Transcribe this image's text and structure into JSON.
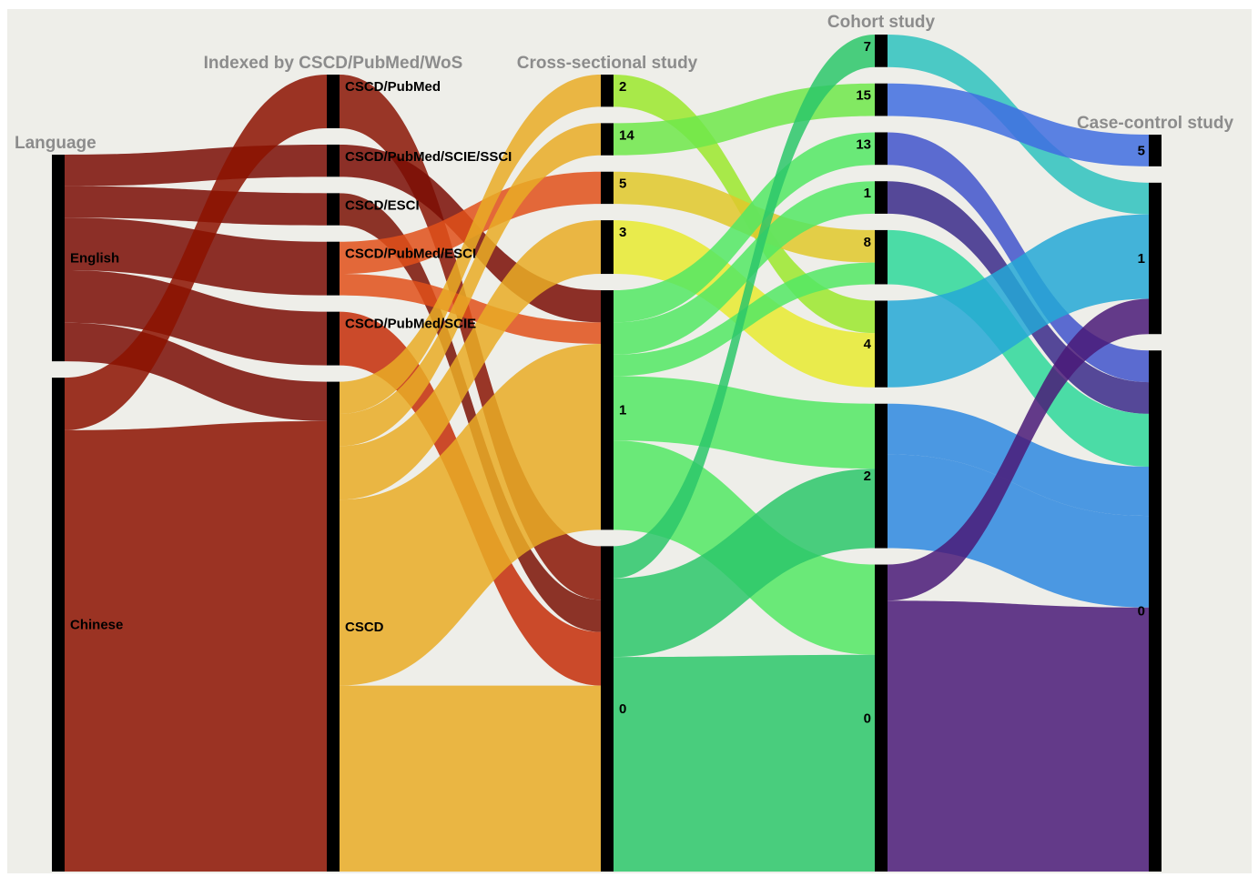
{
  "chart_data": {
    "type": "sankey",
    "subtype": "alluvial",
    "background": "#eeeee9",
    "axes": [
      {
        "title": "Language",
        "categories": [
          "English",
          "Chinese"
        ]
      },
      {
        "title": "Indexed by CSCD/PubMed/WoS",
        "categories": [
          "CSCD/PubMed",
          "CSCD/PubMed/SCIE/SSCI",
          "CSCD/ESCI",
          "CSCD/PubMed/ESCI",
          "CSCD/PubMed/SCIE",
          "CSCD"
        ]
      },
      {
        "title": "Cross-sectional study",
        "categories": [
          "2",
          "14",
          "5",
          "3",
          "1",
          "0"
        ]
      },
      {
        "title": "Cohort study",
        "categories": [
          "7",
          "15",
          "13",
          "1",
          "8",
          "4",
          "2",
          "0"
        ]
      },
      {
        "title": "Case-control study",
        "categories": [
          "5",
          "1",
          "0"
        ]
      }
    ],
    "nodes": [
      [
        {
          "label": "English",
          "value": 118
        },
        {
          "label": "Chinese",
          "value": 282
        }
      ],
      [
        {
          "label": "CSCD/PubMed",
          "value": 30
        },
        {
          "label": "CSCD/PubMed/SCIE/SSCI",
          "value": 18
        },
        {
          "label": "CSCD/ESCI",
          "value": 18
        },
        {
          "label": "CSCD/PubMed/ESCI",
          "value": 30
        },
        {
          "label": "CSCD/PubMed/SCIE",
          "value": 30
        },
        {
          "label": "CSCD",
          "value": 274
        }
      ],
      [
        {
          "label": "2",
          "value": 18
        },
        {
          "label": "14",
          "value": 18
        },
        {
          "label": "5",
          "value": 18
        },
        {
          "label": "3",
          "value": 30
        },
        {
          "label": "1",
          "value": 134
        },
        {
          "label": "0",
          "value": 182
        }
      ],
      [
        {
          "label": "7",
          "value": 18
        },
        {
          "label": "15",
          "value": 18
        },
        {
          "label": "13",
          "value": 18
        },
        {
          "label": "1",
          "value": 18
        },
        {
          "label": "8",
          "value": 30
        },
        {
          "label": "4",
          "value": 48
        },
        {
          "label": "2",
          "value": 80
        },
        {
          "label": "0",
          "value": 170
        }
      ],
      [
        {
          "label": "5",
          "value": 18
        },
        {
          "label": "1",
          "value": 86
        },
        {
          "label": "0",
          "value": 296
        }
      ]
    ],
    "flows": [
      [
        {
          "source": 0,
          "target": 1,
          "value": 18
        },
        {
          "source": 0,
          "target": 2,
          "value": 18
        },
        {
          "source": 0,
          "target": 3,
          "value": 30
        },
        {
          "source": 0,
          "target": 4,
          "value": 30
        },
        {
          "source": 0,
          "target": 5,
          "value": 22
        },
        {
          "source": 1,
          "target": 0,
          "value": 30
        },
        {
          "source": 1,
          "target": 5,
          "value": 252
        }
      ],
      [
        {
          "source": 0,
          "target": 5,
          "value": 30
        },
        {
          "source": 1,
          "target": 4,
          "value": 18
        },
        {
          "source": 2,
          "target": 5,
          "value": 18
        },
        {
          "source": 3,
          "target": 2,
          "value": 18
        },
        {
          "source": 3,
          "target": 4,
          "value": 12
        },
        {
          "source": 4,
          "target": 5,
          "value": 30
        },
        {
          "source": 5,
          "target": 0,
          "value": 18
        },
        {
          "source": 5,
          "target": 1,
          "value": 18
        },
        {
          "source": 5,
          "target": 3,
          "value": 30
        },
        {
          "source": 5,
          "target": 4,
          "value": 104
        },
        {
          "source": 5,
          "target": 5,
          "value": 104
        }
      ],
      [
        {
          "source": 0,
          "target": 5,
          "value": 18
        },
        {
          "source": 1,
          "target": 1,
          "value": 18
        },
        {
          "source": 2,
          "target": 4,
          "value": 18
        },
        {
          "source": 3,
          "target": 5,
          "value": 30
        },
        {
          "source": 4,
          "target": 2,
          "value": 18
        },
        {
          "source": 4,
          "target": 3,
          "value": 18
        },
        {
          "source": 4,
          "target": 4,
          "value": 12
        },
        {
          "source": 4,
          "target": 6,
          "value": 36
        },
        {
          "source": 4,
          "target": 7,
          "value": 50
        },
        {
          "source": 5,
          "target": 0,
          "value": 18
        },
        {
          "source": 5,
          "target": 6,
          "value": 44
        },
        {
          "source": 5,
          "target": 7,
          "value": 120
        }
      ],
      [
        {
          "source": 0,
          "target": 1,
          "value": 18
        },
        {
          "source": 1,
          "target": 0,
          "value": 18
        },
        {
          "source": 2,
          "target": 2,
          "value": 18
        },
        {
          "source": 3,
          "target": 2,
          "value": 18
        },
        {
          "source": 4,
          "target": 2,
          "value": 30
        },
        {
          "source": 5,
          "target": 1,
          "value": 48
        },
        {
          "source": 6,
          "target": 2,
          "value": 28
        },
        {
          "source": 6,
          "target": 2,
          "value": 52
        },
        {
          "source": 7,
          "target": 1,
          "value": 20
        },
        {
          "source": 7,
          "target": 2,
          "value": 150
        }
      ]
    ],
    "colors": {
      "axis0": [
        "#7a0d05",
        "#8c1200"
      ],
      "axis1": [
        "#8a1505",
        "#7a0d05",
        "#7a1205",
        "#e0501a",
        "#c42d08",
        "#e9ac26"
      ],
      "axis2": [
        "#9be82d",
        "#6ee84a",
        "#e0c82a",
        "#e8ea30",
        "#52e864",
        "#2cc76a"
      ],
      "axis3": [
        "#2ec2be",
        "#3f6de0",
        "#4153cb",
        "#3a2a8a",
        "#2ed89a",
        "#24a8d6",
        "#2e88e0",
        "#4a1a78"
      ]
    },
    "node_bar_color": "#000000",
    "axis_title_color": "#8c8c8c"
  }
}
